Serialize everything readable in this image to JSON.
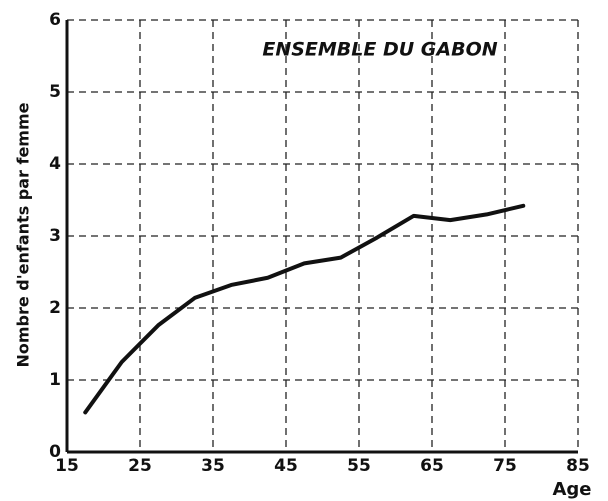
{
  "chart_data": {
    "type": "line",
    "title": "ENSEMBLE DU GABON",
    "y_label": "Nombre d'enfants par femme",
    "x_label": "Age",
    "x": [
      17.5,
      22.5,
      27.5,
      32.5,
      37.5,
      42.5,
      47.5,
      52.5,
      57.5,
      62.5,
      67.5,
      72.5,
      77.5
    ],
    "series": [
      {
        "name": "Ensemble du Gabon",
        "color": "#111111",
        "values": [
          0.55,
          1.25,
          1.76,
          2.14,
          2.32,
          2.42,
          2.62,
          2.7,
          2.98,
          3.28,
          3.22,
          3.3,
          3.42
        ]
      }
    ],
    "xlim": [
      15,
      85
    ],
    "xticks": [
      15,
      25,
      35,
      45,
      55,
      65,
      75,
      85
    ],
    "ylim": [
      0,
      6
    ],
    "yticks": [
      0,
      1,
      2,
      3,
      4,
      5,
      6
    ],
    "grid": true
  }
}
